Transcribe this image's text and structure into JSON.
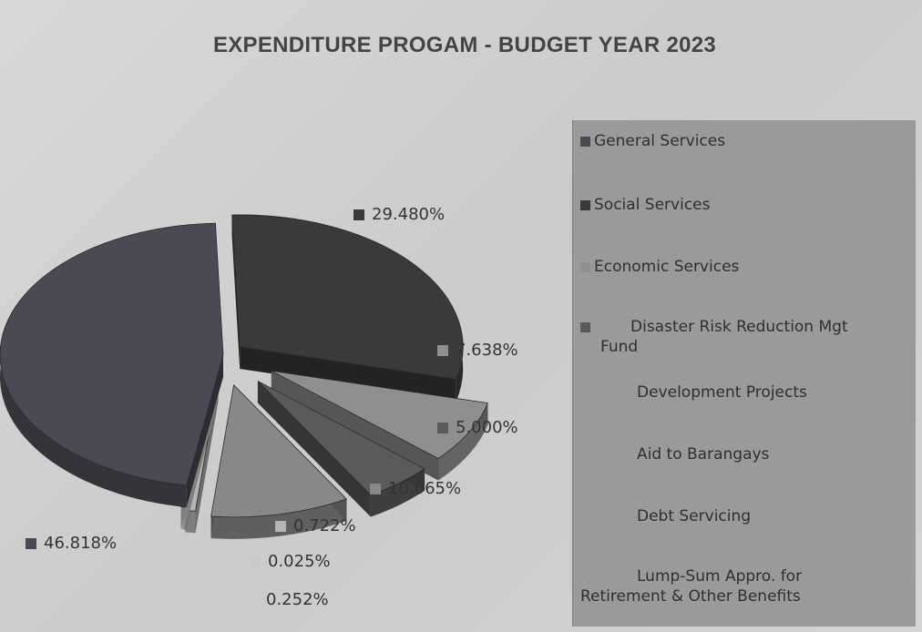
{
  "chart_data": {
    "type": "pie",
    "title": "EXPENDITURE PROGAM - BUDGET YEAR 2023",
    "categories": [
      "General  Services",
      "Social Services",
      "Economic Services",
      "Disaster Risk Reduction Mgt Fund",
      "Development Projects",
      "Aid to Barangays",
      "Debt Servicing",
      "Lump-Sum Appro. for Retirement & Other Benefits"
    ],
    "values": [
      46.818,
      29.48,
      7.638,
      5.0,
      10.065,
      0.722,
      0.025,
      0.252
    ],
    "data_labels": [
      "46.818%",
      "29.480%",
      "7.638%",
      "5.000%",
      "10.065%",
      "0.722%",
      "0.025%",
      "0.252%"
    ],
    "colors": [
      "#4a4a55",
      "#3a3a3a",
      "#8f8f8f",
      "#5a5a5a",
      "#888888",
      "#b5b5b5",
      "#c8c8c8",
      "#d6d6d6"
    ],
    "legend_placement": "right",
    "style": "exploded-3d"
  },
  "legend": {
    "items": [
      {
        "label": "General  Services",
        "color": "#4a4a55"
      },
      {
        "label": "Social Services",
        "color": "#3a3a3a"
      },
      {
        "label": "Economic Services",
        "color": "#8f8f8f"
      },
      {
        "label": "Disaster Risk Reduction Mgt",
        "label2": "Fund",
        "color": "#5a5a5a"
      },
      {
        "label": "Development Projects",
        "color": "#888888"
      },
      {
        "label": "Aid to Barangays",
        "color": "#b5b5b5"
      },
      {
        "label": "Debt Servicing",
        "color": "#c8c8c8"
      },
      {
        "label": "Lump-Sum Appro. for",
        "label2": "Retirement & Other Benefits",
        "color": "#d6d6d6"
      }
    ]
  }
}
